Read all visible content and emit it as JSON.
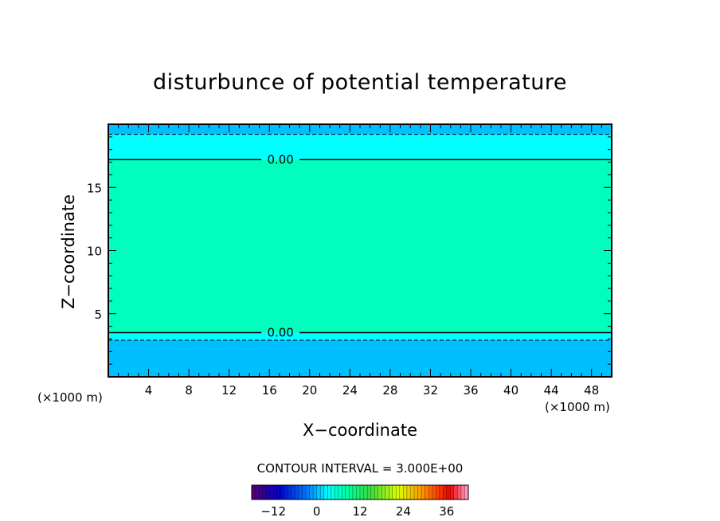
{
  "chart_data": {
    "type": "heatmap",
    "title": "disturbunce of potential temperature",
    "xlabel": "X−coordinate",
    "ylabel": "Z−coordinate",
    "x_unit": "(×1000 m)",
    "x_unit_right": "(×1000 m)",
    "xlim": [
      0,
      50
    ],
    "ylim": [
      0,
      20
    ],
    "xticks": [
      4,
      8,
      12,
      16,
      20,
      24,
      28,
      32,
      36,
      40,
      44,
      48
    ],
    "xtick_labels": [
      "4",
      "8",
      "12",
      "16",
      "20",
      "24",
      "28",
      "32",
      "36",
      "40",
      "44",
      "48"
    ],
    "yticks": [
      5,
      10,
      15
    ],
    "ytick_labels": [
      "5",
      "10",
      "15"
    ],
    "contour_interval_text": "CONTOUR INTERVAL = 3.000E+00",
    "contour_interval": 3.0,
    "contour_labels": [
      "0.00",
      "0.00"
    ],
    "contours": [
      {
        "level": 0.0,
        "style": "solid",
        "label": "0.00",
        "z": 17.2
      },
      {
        "level": 0.0,
        "style": "solid",
        "label": "0.00",
        "z": 3.5
      },
      {
        "level": -3.0,
        "style": "dashed",
        "z": 19.2
      },
      {
        "level": -3.0,
        "style": "dashed",
        "z": 2.9
      }
    ],
    "bands": [
      {
        "z_min": 19.2,
        "z_max": 20.0,
        "value": -4.5,
        "color": "#00bfff"
      },
      {
        "z_min": 17.2,
        "z_max": 19.2,
        "value": -1.5,
        "color": "#00ffff"
      },
      {
        "z_min": 3.5,
        "z_max": 17.2,
        "value": 1.5,
        "color": "#00ffbf"
      },
      {
        "z_min": 2.9,
        "z_max": 3.5,
        "value": -1.5,
        "color": "#00ffff"
      },
      {
        "z_min": 0.0,
        "z_max": 2.9,
        "value": -4.5,
        "color": "#00bfff"
      }
    ],
    "colorbar": {
      "min": -18,
      "max": 42,
      "ticks": [
        -12,
        0,
        12,
        24,
        36
      ],
      "tick_labels": [
        "−12",
        "0",
        "12",
        "24",
        "36"
      ]
    }
  }
}
